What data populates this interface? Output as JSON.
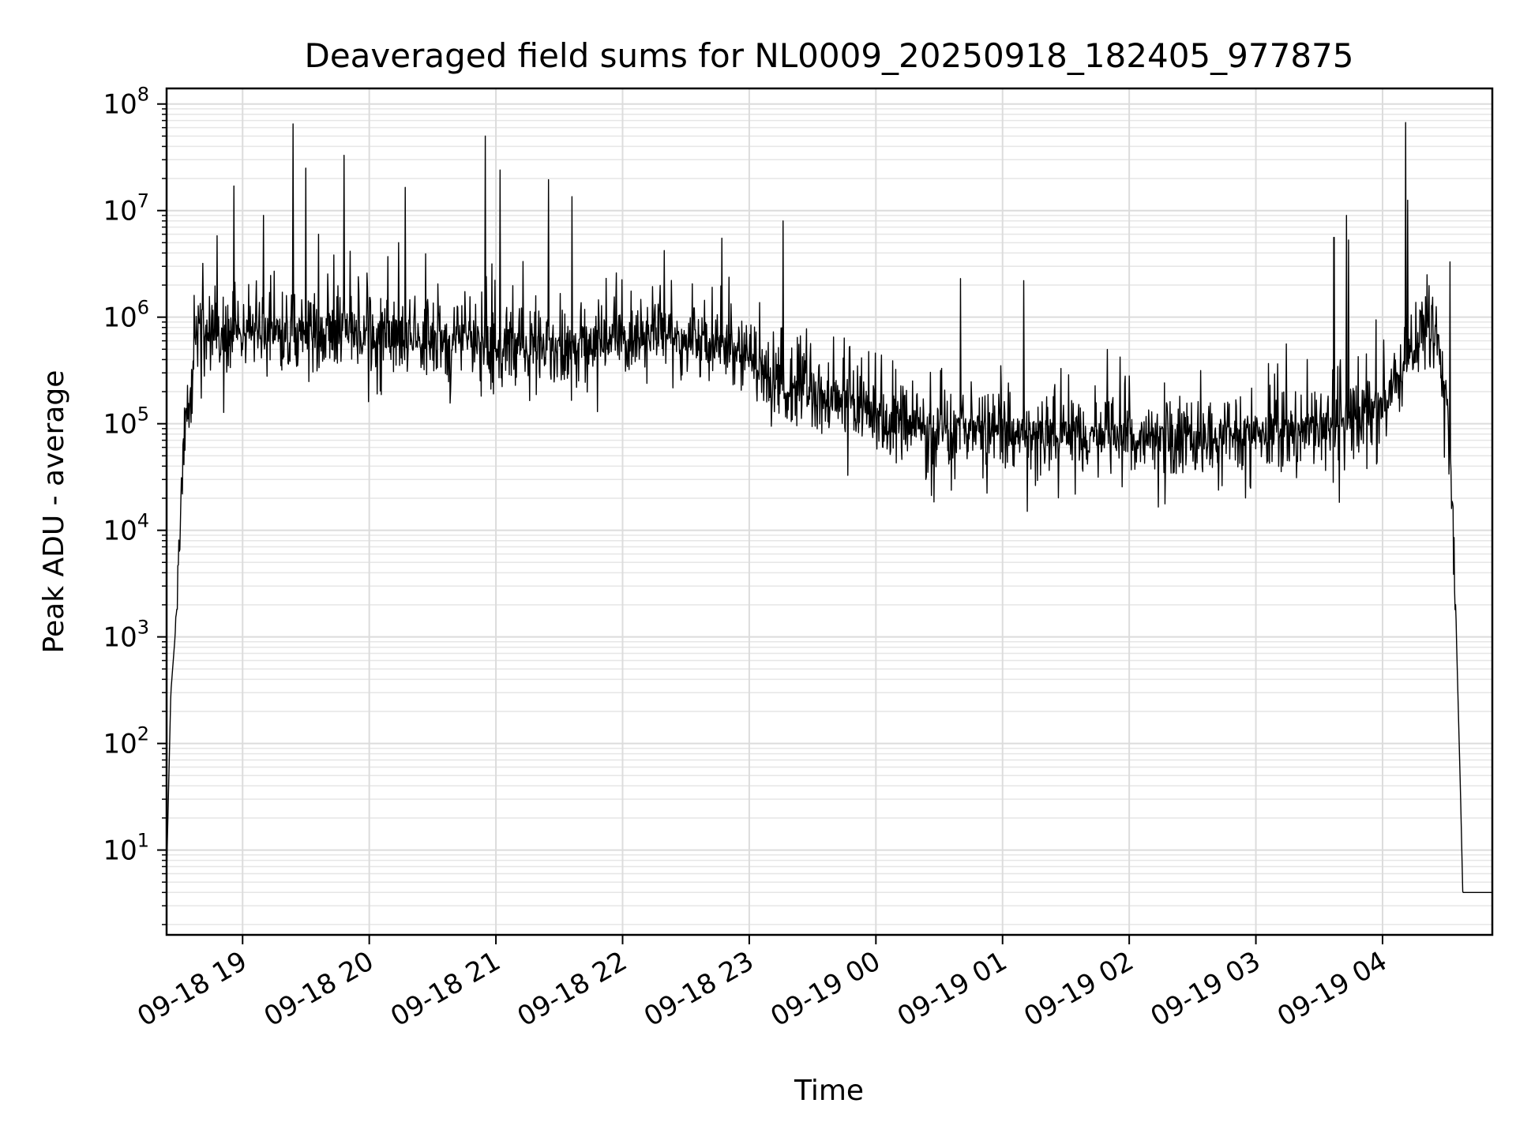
{
  "chart_data": {
    "type": "line",
    "title": "Deaveraged field sums for NL0009_20250918_182405_977875",
    "xlabel": "Time",
    "ylabel": "Peak ADU - average",
    "yscale": "log",
    "ylim": [
      1.6,
      140000000
    ],
    "xlim": [
      "2025-09-18 18:24",
      "2025-09-19 04:52"
    ],
    "grid": true,
    "line_color": "#000000",
    "x_ticks": [
      {
        "time": "2025-09-18 19:00",
        "label": "09-18 19"
      },
      {
        "time": "2025-09-18 20:00",
        "label": "09-18 20"
      },
      {
        "time": "2025-09-18 21:00",
        "label": "09-18 21"
      },
      {
        "time": "2025-09-18 22:00",
        "label": "09-18 22"
      },
      {
        "time": "2025-09-18 23:00",
        "label": "09-18 23"
      },
      {
        "time": "2025-09-19 00:00",
        "label": "09-19 00"
      },
      {
        "time": "2025-09-19 01:00",
        "label": "09-19 01"
      },
      {
        "time": "2025-09-19 02:00",
        "label": "09-19 02"
      },
      {
        "time": "2025-09-19 03:00",
        "label": "09-19 03"
      },
      {
        "time": "2025-09-19 04:00",
        "label": "09-19 04"
      }
    ],
    "y_ticks": [
      {
        "value": 10,
        "base": "10",
        "exp": "1"
      },
      {
        "value": 100,
        "base": "10",
        "exp": "2"
      },
      {
        "value": 1000,
        "base": "10",
        "exp": "3"
      },
      {
        "value": 10000,
        "base": "10",
        "exp": "4"
      },
      {
        "value": 100000,
        "base": "10",
        "exp": "5"
      },
      {
        "value": 1000000,
        "base": "10",
        "exp": "6"
      },
      {
        "value": 10000000,
        "base": "10",
        "exp": "7"
      },
      {
        "value": 100000000,
        "base": "10",
        "exp": "8"
      }
    ],
    "series": [
      {
        "x": [
          "2025-09-18 18:24",
          "2025-09-18 18:26",
          "2025-09-18 18:28",
          "2025-09-18 18:31",
          "2025-09-18 18:33",
          "2025-09-18 18:36",
          "2025-09-18 18:38",
          "2025-09-18 18:40",
          "2025-09-18 18:45",
          "2025-09-18 18:50",
          "2025-09-18 19:00",
          "2025-09-18 19:10",
          "2025-09-18 19:20",
          "2025-09-18 19:30",
          "2025-09-18 19:40",
          "2025-09-18 19:50",
          "2025-09-18 20:00",
          "2025-09-18 20:15",
          "2025-09-18 20:30",
          "2025-09-18 20:45",
          "2025-09-18 21:00",
          "2025-09-18 21:15",
          "2025-09-18 21:30",
          "2025-09-18 21:45",
          "2025-09-18 22:00",
          "2025-09-18 22:15",
          "2025-09-18 22:30",
          "2025-09-18 22:45",
          "2025-09-18 23:00",
          "2025-09-18 23:15",
          "2025-09-18 23:30",
          "2025-09-18 23:45",
          "2025-09-19 00:00",
          "2025-09-19 00:15",
          "2025-09-19 00:30",
          "2025-09-19 00:45",
          "2025-09-19 01:00",
          "2025-09-19 01:15",
          "2025-09-19 01:30",
          "2025-09-19 01:45",
          "2025-09-19 02:00",
          "2025-09-19 02:15",
          "2025-09-19 02:30",
          "2025-09-19 02:45",
          "2025-09-19 03:00",
          "2025-09-19 03:15",
          "2025-09-19 03:30",
          "2025-09-19 03:45",
          "2025-09-19 04:00",
          "2025-09-19 04:06",
          "2025-09-19 04:12",
          "2025-09-19 04:18",
          "2025-09-19 04:22",
          "2025-09-19 04:26",
          "2025-09-19 04:29",
          "2025-09-19 04:32",
          "2025-09-19 04:35",
          "2025-09-19 04:37",
          "2025-09-19 04:38",
          "2025-09-19 04:39",
          "2025-09-19 04:40",
          "2025-09-19 04:45",
          "2025-09-19 04:52"
        ],
        "y": [
          6,
          300,
          1000,
          20000,
          100000,
          200000,
          700000,
          900000,
          700000,
          600000,
          700000,
          700000,
          800000,
          700000,
          750000,
          700000,
          700000,
          700000,
          650000,
          600000,
          600000,
          550000,
          550000,
          600000,
          650000,
          700000,
          600000,
          500000,
          400000,
          250000,
          200000,
          150000,
          120000,
          100000,
          90000,
          90000,
          85000,
          80000,
          80000,
          75000,
          75000,
          75000,
          75000,
          80000,
          85000,
          90000,
          90000,
          100000,
          150000,
          200000,
          400000,
          600000,
          800000,
          700000,
          300000,
          50000,
          1000,
          30,
          4,
          4,
          4,
          4,
          4
        ],
        "noise_band_decades": 0.35,
        "spikes": [
          {
            "x": "2025-09-18 18:37",
            "y": 1600000
          },
          {
            "x": "2025-09-18 18:48",
            "y": 5800000
          },
          {
            "x": "2025-09-18 18:56",
            "y": 17000000
          },
          {
            "x": "2025-09-18 19:10",
            "y": 9000000
          },
          {
            "x": "2025-09-18 19:15",
            "y": 2700000
          },
          {
            "x": "2025-09-18 19:24",
            "y": 65000000
          },
          {
            "x": "2025-09-18 19:30",
            "y": 25000000
          },
          {
            "x": "2025-09-18 19:36",
            "y": 6000000
          },
          {
            "x": "2025-09-18 19:48",
            "y": 33000000
          },
          {
            "x": "2025-09-18 20:14",
            "y": 5000000
          },
          {
            "x": "2025-09-18 20:17",
            "y": 16500000
          },
          {
            "x": "2025-09-18 20:55",
            "y": 50000000
          },
          {
            "x": "2025-09-18 21:02",
            "y": 24000000
          },
          {
            "x": "2025-09-18 21:25",
            "y": 19500000
          },
          {
            "x": "2025-09-18 21:36",
            "y": 13500000
          },
          {
            "x": "2025-09-18 21:57",
            "y": 2600000
          },
          {
            "x": "2025-09-18 22:47",
            "y": 5500000
          },
          {
            "x": "2025-09-18 23:16",
            "y": 8000000
          },
          {
            "x": "2025-09-19 00:40",
            "y": 2300000
          },
          {
            "x": "2025-09-19 01:10",
            "y": 2200000
          },
          {
            "x": "2025-09-19 03:37",
            "y": 5600000
          },
          {
            "x": "2025-09-19 03:43",
            "y": 9000000
          },
          {
            "x": "2025-09-19 03:44",
            "y": 5300000
          },
          {
            "x": "2025-09-19 04:11",
            "y": 67000000
          },
          {
            "x": "2025-09-19 04:12",
            "y": 12500000
          },
          {
            "x": "2025-09-19 04:21",
            "y": 2500000
          },
          {
            "x": "2025-09-19 04:32",
            "y": 3300000
          }
        ]
      }
    ]
  }
}
